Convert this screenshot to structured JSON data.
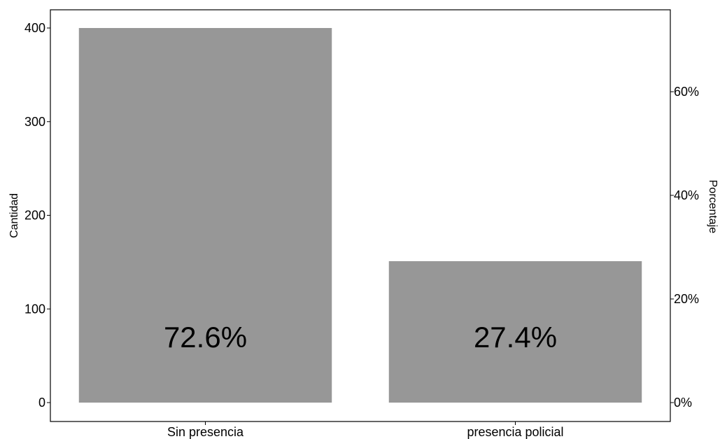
{
  "chart_data": {
    "type": "bar",
    "categories": [
      "Sin presencia",
      "presencia policial"
    ],
    "values": [
      400,
      151
    ],
    "data_labels": [
      "72.6%",
      "27.4%"
    ],
    "ylabel": "Cantidad",
    "ylabel_right": "Porcentaje",
    "ylim": [
      0,
      420
    ],
    "yticks": [
      0,
      100,
      200,
      300,
      400
    ],
    "ytick_labels": [
      "0",
      "100",
      "200",
      "300",
      "400"
    ],
    "ylim_right": [
      0,
      0.762
    ],
    "yticks_right": [
      0,
      0.2,
      0.4,
      0.6
    ],
    "ytick_labels_right": [
      "0%",
      "20%",
      "40%",
      "60%"
    ],
    "grid": false,
    "colors": {
      "bar": "#979797",
      "axis": "#000000",
      "background": "#ffffff"
    }
  }
}
